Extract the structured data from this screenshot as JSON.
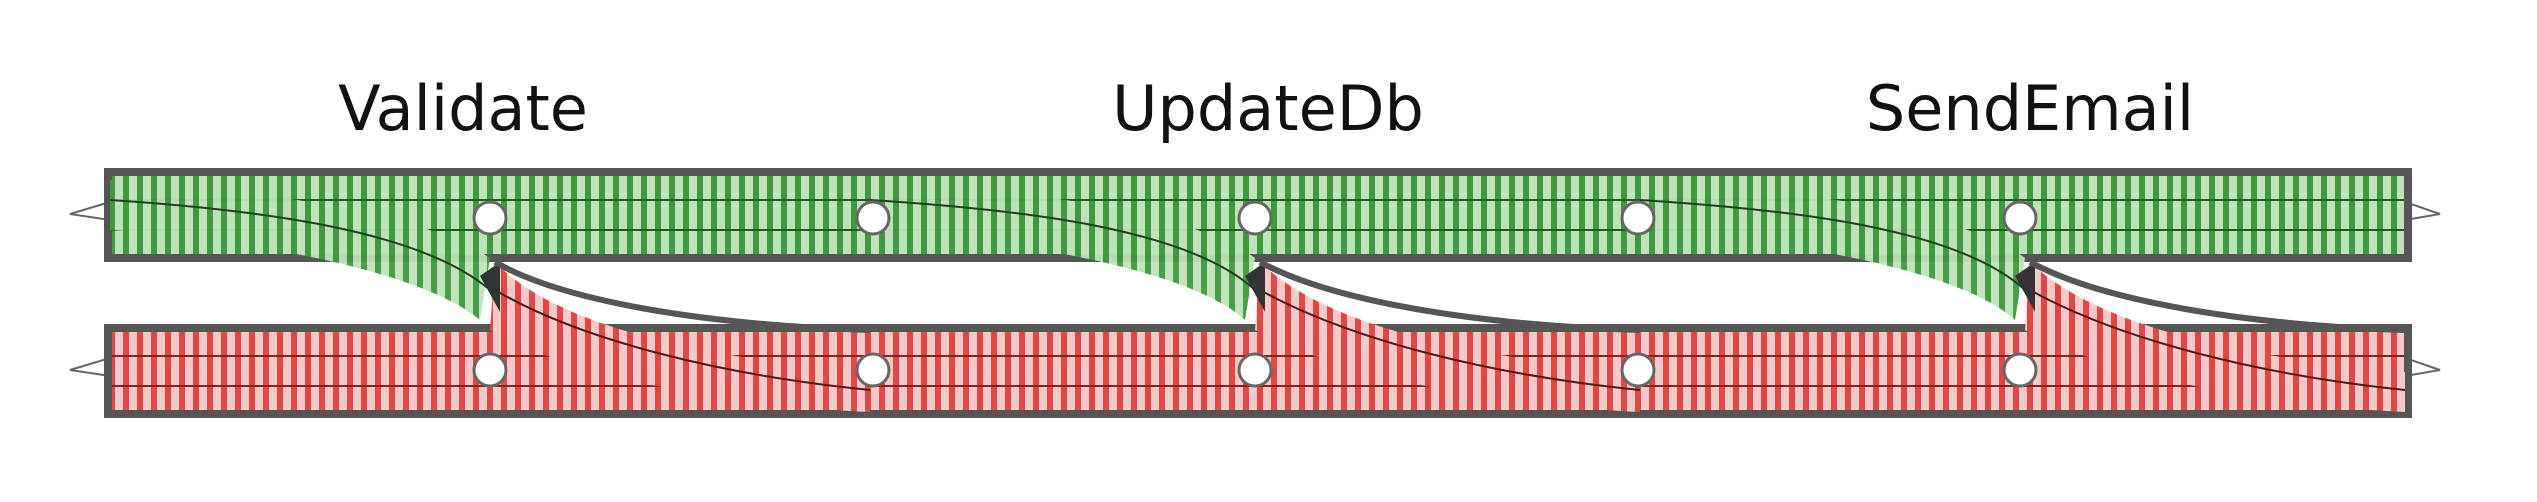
{
  "stages": [
    {
      "label": "Validate"
    },
    {
      "label": "UpdateDb"
    },
    {
      "label": "SendEmail"
    }
  ],
  "tracks": {
    "success": {
      "color": "#2e8b2e",
      "tie_color": "#cfe8c8"
    },
    "failure": {
      "color": "#d93a3a",
      "tie_color": "#f6cccc"
    },
    "rail_color": "#555555"
  }
}
